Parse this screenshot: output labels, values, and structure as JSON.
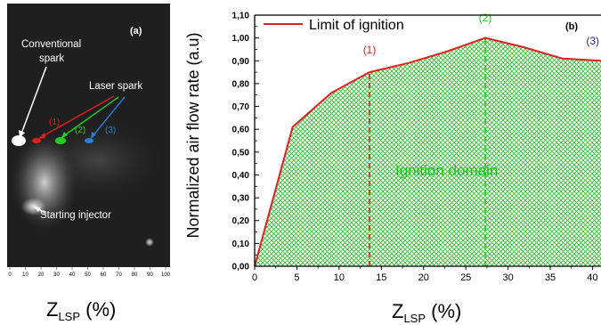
{
  "photo_panel": {
    "panel_label": "(a)",
    "labels": {
      "conventional_line1": "Conventional",
      "conventional_line2": "spark",
      "laser_spark": "Laser spark",
      "marker_1": "(1)",
      "marker_2": "(2)",
      "marker_3": "(3)",
      "starting_injector": "Starting injector"
    },
    "axis_ticks": [
      "0",
      "10",
      "20",
      "30",
      "40",
      "50",
      "60",
      "70",
      "80",
      "90",
      "100"
    ],
    "xlabel_main": "Z",
    "xlabel_sub": "LSP",
    "xlabel_unit": " (%)",
    "colors": {
      "marker_1": "#e02020",
      "marker_2": "#22cc22",
      "marker_3": "#2a7fd4",
      "conventional": "#ffffff"
    }
  },
  "chart_data": {
    "type": "area",
    "panel_label": "(b)",
    "xlabel_main": "Z",
    "xlabel_sub": "LSP",
    "xlabel_unit": " (%)",
    "ylabel": "Normalized air flow rate (a.u)",
    "xlim": [
      0,
      41
    ],
    "ylim": [
      0,
      1.1
    ],
    "x_ticks": [
      0,
      5,
      10,
      15,
      20,
      25,
      30,
      35,
      40
    ],
    "x_tick_labels": [
      "0",
      "5",
      "10",
      "15",
      "20",
      "25",
      "30",
      "35",
      "40"
    ],
    "y_ticks": [
      0,
      0.1,
      0.2,
      0.3,
      0.4,
      0.5,
      0.6,
      0.7,
      0.8,
      0.9,
      1.0,
      1.1
    ],
    "y_tick_labels": [
      "0,00",
      "0,10",
      "0,20",
      "0,30",
      "0,40",
      "0,50",
      "0,60",
      "0,70",
      "0,80",
      "0,90",
      "1,00",
      "1,10"
    ],
    "series": [
      {
        "name": "Limit of ignition",
        "color": "#e02020",
        "x": [
          0,
          4.5,
          9.1,
          13.6,
          18.2,
          22.7,
          27.3,
          31.8,
          36.4,
          41
        ],
        "y": [
          0,
          0.61,
          0.76,
          0.85,
          0.89,
          0.94,
          1.0,
          0.96,
          0.91,
          0.9
        ]
      }
    ],
    "fill_label": "Ignition domain",
    "fill_color": "#22bb22",
    "markers": [
      {
        "label": "(1)",
        "x": 13.6,
        "color": "#e02020"
      },
      {
        "label": "(2)",
        "x": 27.3,
        "color": "#22cc22"
      },
      {
        "label": "(3)",
        "x": 41,
        "color": "#1c1cc0"
      }
    ],
    "grid": false,
    "legend_position": "top-left"
  }
}
